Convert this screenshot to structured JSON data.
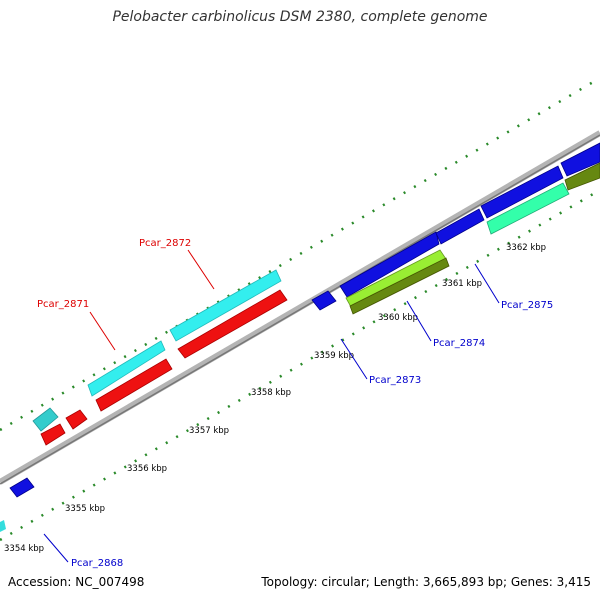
{
  "title": "Pelobacter carbinolicus DSM 2380, complete genome",
  "footer": {
    "accession": "Accession: NC_007498",
    "stats": "Topology: circular; Length: 3,665,893 bp; Genes: 3,415"
  },
  "scale_labels": [
    "3354 kbp",
    "3355 kbp",
    "3356 kbp",
    "3357 kbp",
    "3358 kbp",
    "3359 kbp",
    "3360 kbp",
    "3361 kbp",
    "3362 kbp"
  ],
  "gene_labels": [
    {
      "name": "Pcar_2868",
      "strand": "forward"
    },
    {
      "name": "Pcar_2871",
      "strand": "reverse"
    },
    {
      "name": "Pcar_2872",
      "strand": "reverse"
    },
    {
      "name": "Pcar_2873",
      "strand": "forward"
    },
    {
      "name": "Pcar_2874",
      "strand": "forward"
    },
    {
      "name": "Pcar_2875",
      "strand": "forward"
    }
  ],
  "colors": {
    "forward_cds": "#1010e0",
    "reverse_cds": "#ee1111",
    "cyan_track": "#33eeee",
    "lime_track": "#99ee33",
    "olive_track": "#668811",
    "mint_track": "#33ffaa",
    "backbone": "#999999",
    "ticks": "#2a8a2a",
    "label_forward": "#0000cc",
    "label_reverse": "#dd0000"
  }
}
